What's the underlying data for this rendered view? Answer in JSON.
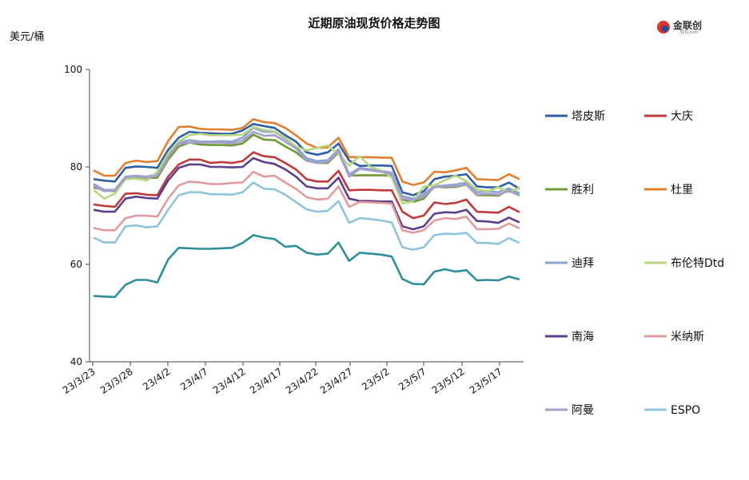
{
  "chart_data": {
    "type": "line",
    "title": "近期原油现货价格走势图",
    "ylabel": "美元/桶",
    "ylim": [
      40,
      100
    ],
    "yticks": [
      "40",
      "60",
      "80",
      "100"
    ],
    "x_tick_labels": [
      "23/3/23",
      "23/3/28",
      "23/4/2",
      "23/4/7",
      "23/4/12",
      "23/4/17",
      "23/4/22",
      "23/4/27",
      "23/5/2",
      "23/5/7",
      "23/5/12",
      "23/5/17"
    ],
    "grid": false,
    "legend_position": "right",
    "x": [
      "3/23",
      "3/24",
      "3/27",
      "3/28",
      "3/29",
      "3/30",
      "3/31",
      "4/3",
      "4/4",
      "4/5",
      "4/6",
      "4/7",
      "4/10",
      "4/11",
      "4/12",
      "4/13",
      "4/14",
      "4/17",
      "4/18",
      "4/19",
      "4/20",
      "4/21",
      "4/24",
      "4/25",
      "4/26",
      "4/27",
      "4/28",
      "5/1",
      "5/2",
      "5/3",
      "5/4",
      "5/5",
      "5/8",
      "5/9",
      "5/10",
      "5/11",
      "5/12",
      "5/15",
      "5/16",
      "5/17",
      "5/18"
    ],
    "series": [
      {
        "name": "塔皮斯",
        "color": "#2f5fa6",
        "values": [
          77.5,
          77.2,
          77.0,
          79.8,
          80.1,
          80.0,
          79.8,
          83.5,
          86.0,
          87.2,
          87.0,
          86.9,
          86.8,
          86.8,
          87.5,
          88.8,
          88.4,
          88.0,
          86.5,
          85.2,
          83.0,
          82.5,
          83.0,
          84.8,
          81.3,
          80.2,
          80.3,
          80.3,
          80.2,
          74.8,
          74.2,
          75.0,
          77.5,
          78.0,
          78.2,
          78.5,
          76.0,
          75.8,
          75.8,
          76.8,
          75.5
        ]
      },
      {
        "name": "大庆",
        "color": "#c0393b",
        "values": [
          72.3,
          72.0,
          71.8,
          74.5,
          74.6,
          74.3,
          74.2,
          78.0,
          80.5,
          81.5,
          81.5,
          80.8,
          81.0,
          80.8,
          81.2,
          83.0,
          82.2,
          82.0,
          80.8,
          79.5,
          77.5,
          77.0,
          77.0,
          79.2,
          75.2,
          75.3,
          75.3,
          75.2,
          75.2,
          70.8,
          69.5,
          70.0,
          72.7,
          72.4,
          72.6,
          73.3,
          70.8,
          70.7,
          70.6,
          71.8,
          70.7
        ]
      },
      {
        "name": "胜利",
        "color": "#6f9a35",
        "values": [
          75.8,
          75.2,
          75.0,
          77.7,
          78.0,
          77.7,
          77.8,
          81.5,
          84.2,
          85.0,
          84.6,
          84.5,
          84.5,
          84.4,
          84.8,
          86.6,
          85.6,
          85.5,
          84.2,
          83.0,
          81.3,
          80.8,
          80.8,
          83.0,
          78.2,
          78.3,
          78.3,
          78.3,
          78.2,
          73.3,
          72.8,
          73.5,
          76.0,
          75.8,
          75.9,
          76.4,
          74.2,
          74.2,
          74.1,
          75.3,
          74.2
        ]
      },
      {
        "name": "杜里",
        "color": "#e07f2f",
        "values": [
          79.3,
          78.2,
          78.2,
          80.8,
          81.3,
          81.0,
          81.2,
          85.3,
          88.2,
          88.3,
          87.8,
          87.7,
          87.7,
          87.6,
          88.0,
          89.8,
          89.2,
          89.0,
          88.0,
          86.5,
          84.8,
          83.9,
          84.0,
          86.0,
          82.0,
          82.0,
          82.0,
          81.9,
          81.9,
          77.0,
          76.3,
          76.8,
          79.0,
          78.9,
          79.3,
          79.8,
          77.5,
          77.4,
          77.3,
          78.5,
          77.5
        ]
      },
      {
        "name": "迪拜",
        "color": "#8aa6d0",
        "values": [
          76.5,
          75.3,
          75.3,
          78.0,
          78.2,
          78.0,
          78.5,
          82.2,
          85.0,
          85.5,
          85.2,
          85.2,
          85.3,
          85.2,
          86.0,
          88.0,
          87.2,
          87.2,
          85.8,
          84.2,
          81.8,
          81.2,
          81.4,
          83.6,
          78.5,
          79.8,
          79.5,
          79.2,
          78.8,
          74.0,
          73.5,
          74.5,
          76.0,
          76.2,
          76.4,
          76.8,
          74.8,
          75.0,
          74.8,
          75.6,
          74.6
        ]
      },
      {
        "name": "布伦特Dtd",
        "color": "#b7d67f",
        "values": [
          75.3,
          73.5,
          74.5,
          77.5,
          77.6,
          77.2,
          79.0,
          82.8,
          85.2,
          86.5,
          86.8,
          86.5,
          86.5,
          86.5,
          86.6,
          88.2,
          87.6,
          87.3,
          86.0,
          84.2,
          83.4,
          83.9,
          84.4,
          82.6,
          80.3,
          82.2,
          80.0,
          79.3,
          77.8,
          72.5,
          72.9,
          76.0,
          76.2,
          77.3,
          78.2,
          77.1,
          75.4,
          75.0,
          75.8,
          74.8,
          75.8
        ]
      },
      {
        "name": "南海",
        "color": "#5d3f8c",
        "values": [
          71.2,
          70.8,
          70.8,
          73.5,
          73.9,
          73.6,
          73.5,
          77.2,
          79.8,
          80.5,
          80.5,
          80.0,
          80.0,
          79.9,
          80.0,
          81.8,
          81.0,
          80.6,
          79.5,
          78.0,
          76.0,
          75.6,
          75.6,
          77.8,
          73.5,
          73.0,
          73.0,
          72.9,
          72.9,
          67.8,
          67.2,
          67.8,
          70.4,
          70.7,
          70.6,
          71.2,
          68.9,
          68.8,
          68.5,
          69.6,
          68.6
        ]
      },
      {
        "name": "米纳斯",
        "color": "#e19b9e",
        "values": [
          67.5,
          67.0,
          67.0,
          69.5,
          70.0,
          70.0,
          69.8,
          73.5,
          76.2,
          77.0,
          76.8,
          76.5,
          76.5,
          76.7,
          76.8,
          79.0,
          78.0,
          78.2,
          76.8,
          75.5,
          73.8,
          73.3,
          73.5,
          76.0,
          71.8,
          72.8,
          72.7,
          72.6,
          72.5,
          67.0,
          66.5,
          67.0,
          69.0,
          69.5,
          69.3,
          69.8,
          67.2,
          67.2,
          67.3,
          68.4,
          67.4
        ]
      },
      {
        "name": "阿曼",
        "color": "#a89ccc",
        "values": [
          76.2,
          75.0,
          75.2,
          77.8,
          78.1,
          77.8,
          78.2,
          82.0,
          84.8,
          85.0,
          85.0,
          85.0,
          85.0,
          84.8,
          85.4,
          87.2,
          86.4,
          86.5,
          85.2,
          83.8,
          81.4,
          80.8,
          81.0,
          83.3,
          78.0,
          79.6,
          79.3,
          79.0,
          78.5,
          73.5,
          73.2,
          74.0,
          75.8,
          76.0,
          76.1,
          76.5,
          74.3,
          74.5,
          74.3,
          75.1,
          74.1
        ]
      },
      {
        "name": "ESPO",
        "color": "#8ec5d9",
        "values": [
          65.5,
          64.5,
          64.5,
          67.8,
          68.0,
          67.6,
          67.8,
          71.2,
          74.2,
          74.8,
          74.8,
          74.4,
          74.4,
          74.3,
          74.8,
          76.8,
          75.5,
          75.4,
          74.3,
          72.8,
          71.3,
          70.8,
          71.0,
          73.0,
          68.5,
          69.5,
          69.3,
          69.0,
          68.6,
          63.5,
          63.0,
          63.5,
          66.0,
          66.3,
          66.2,
          66.5,
          64.4,
          64.4,
          64.2,
          65.4,
          64.4
        ]
      },
      {
        "name": "",
        "color": "#2f8f99",
        "values": [
          53.5,
          53.4,
          53.3,
          55.8,
          56.8,
          56.8,
          56.3,
          61.0,
          63.4,
          63.3,
          63.2,
          63.2,
          63.3,
          63.4,
          64.4,
          66.0,
          65.5,
          65.2,
          63.6,
          63.8,
          62.4,
          62.0,
          62.2,
          64.5,
          60.7,
          62.4,
          62.2,
          62.0,
          61.6,
          57.0,
          56.0,
          55.9,
          58.5,
          59.0,
          58.5,
          58.8,
          56.7,
          56.8,
          56.7,
          57.5,
          56.9
        ]
      }
    ]
  },
  "logo": {
    "text": "金联创",
    "sub": "315i.com"
  }
}
